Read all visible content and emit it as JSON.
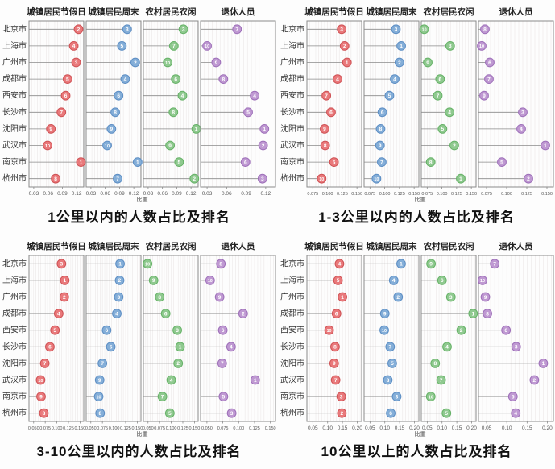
{
  "page": {
    "background": "#ffffff"
  },
  "cities": [
    "北京市",
    "上海市",
    "广州市",
    "成都市",
    "西安市",
    "长沙市",
    "沈阳市",
    "武汉市",
    "南京市",
    "杭州市"
  ],
  "axis_label": "比重",
  "colors": {
    "urban_holiday_fill": "#e9797b",
    "urban_holiday_stroke": "#cf5255",
    "urban_weekend_fill": "#84aed8",
    "urban_weekend_stroke": "#5d8ec4",
    "rural_leisure_fill": "#8fc98f",
    "rural_leisure_stroke": "#66b267",
    "retired_fill": "#bf99d2",
    "retired_stroke": "#9e70b9",
    "stem": "#8a8a8a",
    "panel_border": "#8a8a8a",
    "grid": "#ece8e8",
    "rank_text": "#ffffff",
    "tick_text": "#555555",
    "label_text": "#333333"
  },
  "chart_data": [
    {
      "type": "lollipop",
      "title": "1公里以内的人数占比及排名",
      "xlabel": "比重",
      "categories": [
        "北京市",
        "上海市",
        "广州市",
        "成都市",
        "西安市",
        "长沙市",
        "沈阳市",
        "武汉市",
        "南京市",
        "杭州市"
      ],
      "x_range": [
        0.02,
        0.135
      ],
      "x_ticks": [
        0.03,
        0.06,
        0.09,
        0.12
      ],
      "x_tick_labels": [
        "0.03",
        "0.06",
        "0.09",
        "0.12"
      ],
      "series": [
        {
          "key": "urban-holiday",
          "name": "城镇居民节假日",
          "fill": "#e9797b",
          "stroke": "#cf5255",
          "values": [
            0.124,
            0.114,
            0.119,
            0.101,
            0.097,
            0.088,
            0.066,
            0.059,
            0.129,
            0.076
          ],
          "ranks": [
            2,
            4,
            3,
            5,
            6,
            7,
            9,
            10,
            1,
            8
          ]
        },
        {
          "key": "urban-weekend",
          "name": "城镇居民周末",
          "fill": "#84aed8",
          "stroke": "#5d8ec4",
          "values": [
            0.106,
            0.095,
            0.123,
            0.102,
            0.088,
            0.081,
            0.073,
            0.064,
            0.128,
            0.086
          ],
          "ranks": [
            3,
            5,
            2,
            4,
            6,
            8,
            9,
            10,
            1,
            7
          ]
        },
        {
          "key": "rural-leisure",
          "name": "农村居民农闲",
          "fill": "#8fc98f",
          "stroke": "#66b267",
          "values": [
            0.104,
            0.084,
            0.071,
            0.088,
            0.102,
            0.083,
            0.131,
            0.076,
            0.095,
            0.127
          ],
          "ranks": [
            3,
            7,
            10,
            6,
            4,
            8,
            1,
            9,
            5,
            2
          ]
        },
        {
          "key": "retired",
          "name": "退休人员",
          "fill": "#bf99d2",
          "stroke": "#9e70b9",
          "values": [
            0.076,
            0.03,
            0.044,
            0.055,
            0.103,
            0.093,
            0.118,
            0.116,
            0.089,
            0.115
          ],
          "ranks": [
            7,
            10,
            9,
            8,
            4,
            5,
            1,
            2,
            6,
            3
          ]
        }
      ]
    },
    {
      "type": "lollipop",
      "title": "1-3公里以内的人数占比及排名",
      "xlabel": "比重",
      "categories": [
        "北京市",
        "上海市",
        "广州市",
        "成都市",
        "西安市",
        "长沙市",
        "沈阳市",
        "武汉市",
        "南京市",
        "杭州市"
      ],
      "x_range": [
        0.065,
        0.158
      ],
      "x_ticks": [
        0.075,
        0.1,
        0.125,
        0.15
      ],
      "x_tick_labels": [
        "0.075",
        "0.100",
        "0.125",
        "0.150"
      ],
      "series": [
        {
          "key": "urban-holiday",
          "name": "城镇居民节假日",
          "fill": "#e9797b",
          "stroke": "#cf5255",
          "values": [
            0.124,
            0.129,
            0.133,
            0.117,
            0.098,
            0.106,
            0.095,
            0.096,
            0.111,
            0.09
          ],
          "ranks": [
            3,
            2,
            1,
            4,
            7,
            6,
            9,
            8,
            5,
            10
          ]
        },
        {
          "key": "urban-weekend",
          "name": "城镇居民周末",
          "fill": "#84aed8",
          "stroke": "#5d8ec4",
          "values": [
            0.119,
            0.128,
            0.125,
            0.117,
            0.108,
            0.096,
            0.093,
            0.092,
            0.095,
            0.086
          ],
          "ranks": [
            3,
            1,
            2,
            4,
            5,
            6,
            8,
            9,
            7,
            10
          ]
        },
        {
          "key": "rural-leisure",
          "name": "农村居民农闲",
          "fill": "#8fc98f",
          "stroke": "#66b267",
          "values": [
            0.07,
            0.114,
            0.076,
            0.097,
            0.093,
            0.113,
            0.101,
            0.121,
            0.081,
            0.132
          ],
          "ranks": [
            10,
            3,
            9,
            6,
            7,
            4,
            5,
            2,
            8,
            1
          ]
        },
        {
          "key": "retired",
          "name": "退休人员",
          "fill": "#bf99d2",
          "stroke": "#9e70b9",
          "values": [
            0.073,
            0.069,
            0.079,
            0.078,
            0.072,
            0.12,
            0.118,
            0.148,
            0.094,
            0.127
          ],
          "ranks": [
            8,
            10,
            6,
            7,
            9,
            3,
            4,
            1,
            5,
            2
          ]
        }
      ]
    },
    {
      "type": "lollipop",
      "title": "3-10公里以内的人数占比及排名",
      "xlabel": "比重",
      "categories": [
        "北京市",
        "上海市",
        "广州市",
        "成都市",
        "西安市",
        "长沙市",
        "沈阳市",
        "武汉市",
        "南京市",
        "杭州市"
      ],
      "x_range": [
        0.04,
        0.158
      ],
      "x_ticks": [
        0.05,
        0.075,
        0.1,
        0.125,
        0.15
      ],
      "x_tick_labels": [
        "0.050",
        "0.075",
        "0.100",
        "0.125",
        "0.150"
      ],
      "series": [
        {
          "key": "urban-holiday",
          "name": "城镇居民节假日",
          "fill": "#e9797b",
          "stroke": "#cf5255",
          "values": [
            0.11,
            0.117,
            0.116,
            0.104,
            0.096,
            0.085,
            0.074,
            0.065,
            0.066,
            0.072
          ],
          "ranks": [
            3,
            1,
            2,
            4,
            5,
            6,
            7,
            10,
            9,
            8
          ]
        },
        {
          "key": "urban-weekend",
          "name": "城镇居民周末",
          "fill": "#84aed8",
          "stroke": "#5d8ec4",
          "values": [
            0.113,
            0.112,
            0.11,
            0.106,
            0.084,
            0.093,
            0.075,
            0.069,
            0.067,
            0.07
          ],
          "ranks": [
            1,
            2,
            3,
            4,
            6,
            5,
            7,
            9,
            10,
            8
          ]
        },
        {
          "key": "rural-leisure",
          "name": "农村居民农闲",
          "fill": "#8fc98f",
          "stroke": "#66b267",
          "values": [
            0.049,
            0.062,
            0.075,
            0.088,
            0.113,
            0.119,
            0.115,
            0.1,
            0.081,
            0.097
          ],
          "ranks": [
            10,
            9,
            8,
            6,
            3,
            1,
            2,
            4,
            7,
            5
          ]
        },
        {
          "key": "retired",
          "name": "退休人员",
          "fill": "#bf99d2",
          "stroke": "#9e70b9",
          "values": [
            0.072,
            0.055,
            0.07,
            0.107,
            0.075,
            0.088,
            0.074,
            0.126,
            0.076,
            0.089
          ],
          "ranks": [
            8,
            10,
            9,
            2,
            6,
            4,
            7,
            1,
            5,
            3
          ]
        }
      ]
    },
    {
      "type": "lollipop",
      "title": "10公里以上的人数占比及排名",
      "xlabel": "比重",
      "categories": [
        "北京市",
        "上海市",
        "广州市",
        "成都市",
        "西安市",
        "长沙市",
        "沈阳市",
        "武汉市",
        "南京市",
        "杭州市"
      ],
      "x_range": [
        0.03,
        0.215
      ],
      "x_ticks": [
        0.05,
        0.1,
        0.15,
        0.2
      ],
      "x_tick_labels": [
        "0.05",
        "0.10",
        "0.15",
        "0.20"
      ],
      "series": [
        {
          "key": "urban-holiday",
          "name": "城镇居民节假日",
          "fill": "#e9797b",
          "stroke": "#cf5255",
          "values": [
            0.14,
            0.135,
            0.15,
            0.13,
            0.105,
            0.125,
            0.122,
            0.127,
            0.146,
            0.148
          ],
          "ranks": [
            4,
            5,
            1,
            6,
            10,
            8,
            9,
            7,
            3,
            2
          ]
        },
        {
          "key": "urban-weekend",
          "name": "城镇居民周末",
          "fill": "#84aed8",
          "stroke": "#5d8ec4",
          "values": [
            0.155,
            0.13,
            0.145,
            0.1,
            0.098,
            0.118,
            0.125,
            0.11,
            0.14,
            0.12
          ],
          "ranks": [
            1,
            4,
            2,
            9,
            10,
            7,
            5,
            8,
            3,
            6
          ]
        },
        {
          "key": "rural-leisure",
          "name": "农村居民农闲",
          "fill": "#8fc98f",
          "stroke": "#66b267",
          "values": [
            0.063,
            0.1,
            0.13,
            0.205,
            0.165,
            0.117,
            0.077,
            0.097,
            0.062,
            0.115
          ],
          "ranks": [
            9,
            6,
            3,
            1,
            2,
            4,
            8,
            7,
            10,
            5
          ]
        },
        {
          "key": "retired",
          "name": "退休人员",
          "fill": "#bf99d2",
          "stroke": "#9e70b9",
          "values": [
            0.07,
            0.04,
            0.047,
            0.052,
            0.098,
            0.123,
            0.19,
            0.168,
            0.115,
            0.122
          ],
          "ranks": [
            7,
            10,
            9,
            8,
            6,
            3,
            1,
            2,
            5,
            4
          ]
        }
      ]
    }
  ]
}
